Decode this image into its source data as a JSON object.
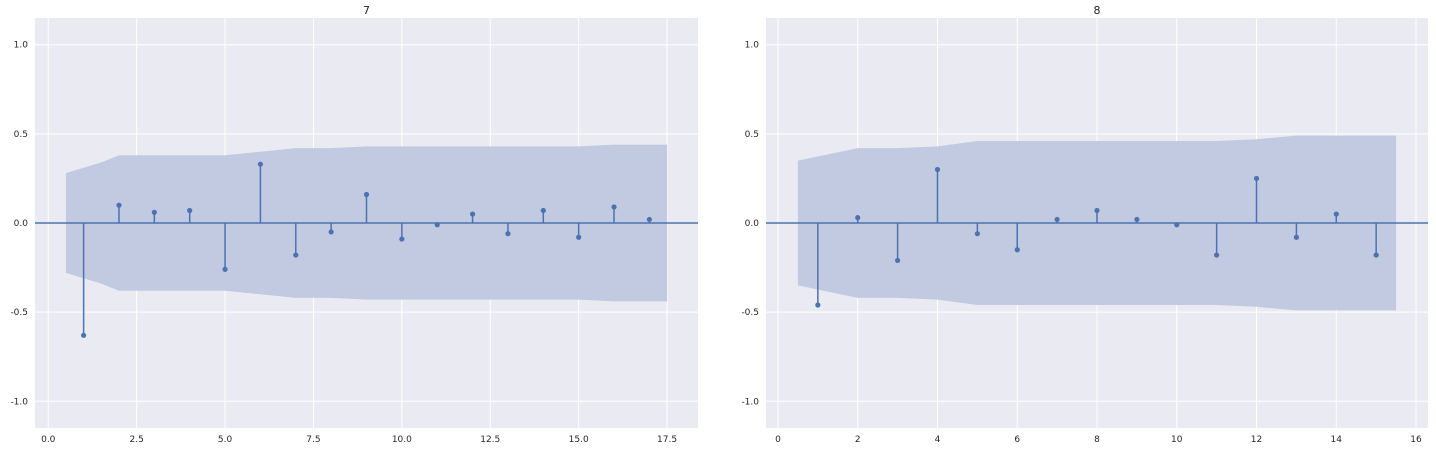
{
  "chart_data": [
    {
      "type": "stem",
      "title": "7",
      "xlim": [
        -0.375,
        18.375
      ],
      "ylim": [
        -1.15,
        1.15
      ],
      "xticks": [
        0,
        2.5,
        5,
        7.5,
        10,
        12.5,
        15,
        17.5
      ],
      "xtick_labels": [
        "0.0",
        "2.5",
        "5.0",
        "7.5",
        "10.0",
        "12.5",
        "15.0",
        "17.5"
      ],
      "yticks": [
        1.0,
        0.5,
        0.0,
        -0.5,
        -1.0
      ],
      "ytick_labels": [
        "1.0",
        "0.5",
        "0.0",
        "-0.5",
        "-1.0"
      ],
      "grid": true,
      "x": [
        1,
        2,
        3,
        4,
        5,
        6,
        7,
        8,
        9,
        10,
        11,
        12,
        13,
        14,
        15,
        16,
        17
      ],
      "values": [
        -0.63,
        0.1,
        0.06,
        0.07,
        -0.26,
        0.33,
        -0.18,
        -0.05,
        0.16,
        -0.09,
        -0.01,
        0.05,
        -0.06,
        0.07,
        -0.08,
        0.09,
        0.02
      ],
      "confint_x": [
        0.5,
        1.5,
        2,
        3,
        4,
        5,
        6,
        7,
        8,
        9,
        10,
        11,
        12,
        13,
        14,
        15,
        16,
        17,
        17.5
      ],
      "confint": [
        0.28,
        0.34,
        0.38,
        0.38,
        0.38,
        0.38,
        0.4,
        0.42,
        0.42,
        0.43,
        0.43,
        0.43,
        0.43,
        0.43,
        0.43,
        0.43,
        0.44,
        0.44,
        0.44
      ]
    },
    {
      "type": "stem",
      "title": "8",
      "xlim": [
        -0.3,
        16.3
      ],
      "ylim": [
        -1.15,
        1.15
      ],
      "xticks": [
        0,
        2,
        4,
        6,
        8,
        10,
        12,
        14,
        16
      ],
      "xtick_labels": [
        "0",
        "2",
        "4",
        "6",
        "8",
        "10",
        "12",
        "14",
        "16"
      ],
      "yticks": [
        1.0,
        0.5,
        0.0,
        -0.5,
        -1.0
      ],
      "ytick_labels": [
        "1.0",
        "0.5",
        "0.0",
        "-0.5",
        "-1.0"
      ],
      "grid": true,
      "x": [
        1,
        2,
        3,
        4,
        5,
        6,
        7,
        8,
        9,
        10,
        11,
        12,
        13,
        14,
        15
      ],
      "values": [
        -0.46,
        0.03,
        -0.21,
        0.3,
        -0.06,
        -0.15,
        0.02,
        0.07,
        0.02,
        -0.01,
        -0.18,
        0.25,
        -0.08,
        0.05,
        -0.18
      ],
      "confint_x": [
        0.5,
        2,
        3,
        4,
        5,
        6,
        7,
        8,
        9,
        10,
        11,
        12,
        13,
        14,
        15,
        15.5
      ],
      "confint": [
        0.35,
        0.42,
        0.42,
        0.43,
        0.46,
        0.46,
        0.46,
        0.46,
        0.46,
        0.46,
        0.46,
        0.47,
        0.49,
        0.49,
        0.49,
        0.49
      ]
    }
  ],
  "style": {
    "plot_bg": "#eaeaf2",
    "grid_color": "#ffffff",
    "stem_color": "#4c72b0",
    "band_color": "#c0c8df",
    "text_color": "#262626"
  }
}
